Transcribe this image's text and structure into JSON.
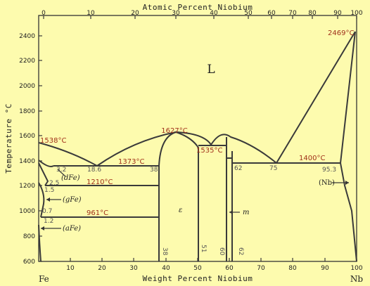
{
  "top_axis": {
    "title": "Atomic Percent Niobium",
    "ticks": [
      "0",
      "10",
      "20",
      "30",
      "40",
      "50",
      "60",
      "70",
      "80",
      "90",
      "100"
    ]
  },
  "bottom_axis": {
    "title": "Weight Percent Niobium",
    "ticks": [
      "10",
      "20",
      "30",
      "40",
      "50",
      "60",
      "70",
      "80",
      "90"
    ],
    "left_end": "Fe",
    "right_end": "Nb",
    "right_tick": "100"
  },
  "left_axis": {
    "title": "Temperature °C",
    "ticks": [
      "600",
      "800",
      "1000",
      "1200",
      "1400",
      "1600",
      "1800",
      "2000",
      "2200",
      "2400"
    ]
  },
  "temperatures": {
    "fe_melt": "1538°C",
    "laves_melt": "1627°C",
    "nb_melt": "2469°C",
    "eut_1373": "1373°C",
    "peritectic_1535": "1535°C",
    "eut_1400": "1400°C",
    "eut_1210": "1210°C",
    "eut_961": "961°C"
  },
  "compositions": {
    "c_3_2": "3.2",
    "c_2_5": "2.5",
    "c_1_5": "1.5",
    "c_0_7": "0.7",
    "c_1_2": "1.2",
    "c_18_6": "18.6",
    "c_38_top": "38",
    "c_62_top": "62",
    "c_75": "75",
    "c_95_3": "95.3",
    "c_38_bot": "38",
    "c_51": "51",
    "c_60": "60",
    "c_62_bot": "62"
  },
  "phases": {
    "liquid": "L",
    "delta_fe": "(dFe)",
    "gamma_fe": "(gFe)",
    "alpha_fe": "(aFe)",
    "nb": "(Nb)",
    "epsilon": "ε",
    "mu": "m"
  }
}
